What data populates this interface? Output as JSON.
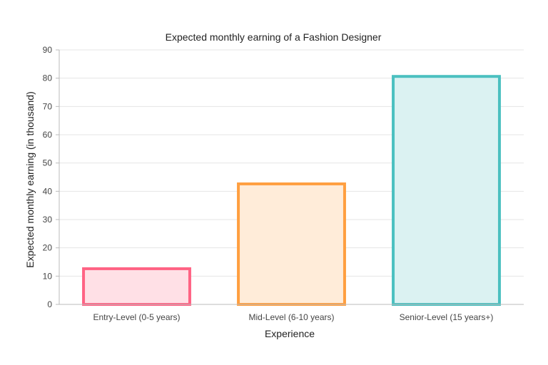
{
  "chart_data": {
    "type": "bar",
    "title": "Expected monthly earning of a Fashion Designer",
    "xlabel": "Experience",
    "ylabel": "Expected monthly earning (in thousand)",
    "categories": [
      "Entry-Level (0-5 years)",
      "Mid-Level (6-10 years)",
      "Senior-Level (15 years+)"
    ],
    "values": [
      13,
      43,
      81
    ],
    "ylim": [
      0,
      90
    ],
    "yticks": [
      "0",
      "10",
      "20",
      "30",
      "40",
      "50",
      "60",
      "70",
      "80",
      "90"
    ],
    "grid": true,
    "legend": "none",
    "colors": {
      "border": [
        "#ff6384",
        "#ff9f40",
        "#4bc0c0"
      ],
      "fill": [
        "#ffe0e6",
        "#ffecd9",
        "#dbf2f2"
      ],
      "grid": "#e5e5e5",
      "axis": "#bbbbbb"
    }
  }
}
